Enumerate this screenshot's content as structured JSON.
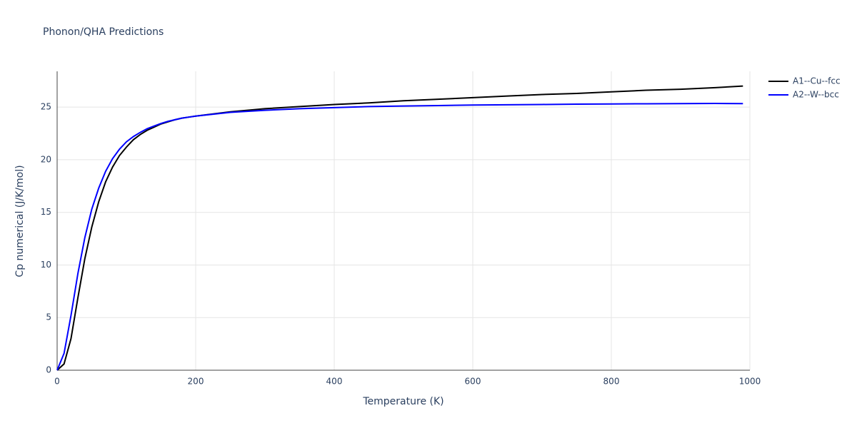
{
  "chart_data": {
    "type": "line",
    "title": "Phonon/QHA Predictions",
    "x_label": "Temperature (K)",
    "y_label": "Cp numerical (J/K/mol)",
    "x": [
      0,
      10,
      20,
      30,
      40,
      50,
      60,
      70,
      80,
      90,
      100,
      110,
      120,
      130,
      140,
      150,
      160,
      170,
      180,
      190,
      200,
      250,
      300,
      350,
      400,
      450,
      500,
      550,
      600,
      650,
      700,
      750,
      800,
      850,
      900,
      950,
      990
    ],
    "series": [
      {
        "name": "A1--Cu--fcc",
        "color": "#000000",
        "values": [
          0,
          0.6,
          3.0,
          6.9,
          10.6,
          13.6,
          16.0,
          17.9,
          19.3,
          20.4,
          21.2,
          21.9,
          22.4,
          22.8,
          23.1,
          23.4,
          23.6,
          23.8,
          23.95,
          24.05,
          24.15,
          24.55,
          24.85,
          25.05,
          25.25,
          25.4,
          25.6,
          25.75,
          25.9,
          26.05,
          26.2,
          26.3,
          26.45,
          26.6,
          26.7,
          26.85,
          27.0
        ]
      },
      {
        "name": "A2--W--bcc",
        "color": "#0000ff",
        "values": [
          0,
          1.6,
          5.2,
          9.2,
          12.6,
          15.3,
          17.3,
          18.9,
          20.1,
          21.0,
          21.7,
          22.2,
          22.6,
          22.95,
          23.2,
          23.45,
          23.65,
          23.8,
          23.95,
          24.05,
          24.15,
          24.5,
          24.7,
          24.85,
          24.95,
          25.05,
          25.1,
          25.15,
          25.2,
          25.22,
          25.25,
          25.28,
          25.3,
          25.32,
          25.33,
          25.35,
          25.33
        ]
      }
    ],
    "xlim": [
      0,
      1000
    ],
    "xticks": [
      0,
      200,
      400,
      600,
      800,
      1000
    ],
    "ylim": [
      0,
      28.4
    ],
    "yticks": [
      0,
      5,
      10,
      15,
      20,
      25
    ],
    "grid": true,
    "legend": "right"
  }
}
